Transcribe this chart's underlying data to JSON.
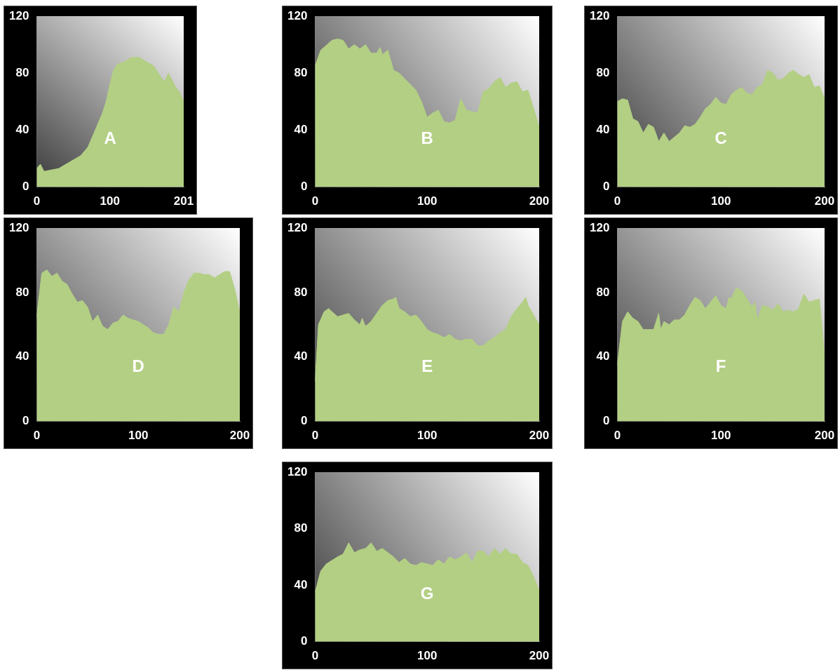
{
  "chart_data": [
    {
      "type": "area",
      "x": [
        0,
        5,
        10,
        20,
        30,
        40,
        50,
        60,
        70,
        80,
        90,
        95,
        100,
        105,
        110,
        120,
        130,
        140,
        150,
        160,
        170,
        175,
        180,
        190,
        195,
        201
      ],
      "values": [
        13,
        16,
        11,
        12,
        13,
        16,
        19,
        22,
        28,
        40,
        52,
        60,
        72,
        82,
        86,
        88,
        91,
        91,
        88,
        85,
        77,
        74,
        80,
        70,
        67,
        60
      ],
      "color": "#b3cf84",
      "xlim": [
        0,
        201
      ],
      "xticks": [
        0,
        100,
        201
      ],
      "ylim": [
        0,
        120
      ],
      "yticks": [
        0,
        40,
        80,
        120
      ],
      "annotations": [
        "A"
      ]
    },
    {
      "type": "area",
      "x": [
        0,
        5,
        15,
        20,
        25,
        30,
        35,
        40,
        45,
        50,
        55,
        58,
        60,
        65,
        70,
        75,
        80,
        90,
        95,
        100,
        105,
        110,
        115,
        120,
        125,
        130,
        135,
        140,
        145,
        150,
        155,
        160,
        165,
        170,
        175,
        180,
        185,
        190,
        195,
        200
      ],
      "values": [
        85,
        96,
        103,
        104,
        103,
        97,
        100,
        97,
        100,
        94,
        94,
        98,
        93,
        96,
        82,
        80,
        76,
        68,
        60,
        49,
        52,
        54,
        46,
        45,
        47,
        62,
        54,
        53,
        52,
        67,
        69,
        74,
        77,
        70,
        73,
        74,
        67,
        68,
        55,
        42
      ],
      "color": "#b3cf84",
      "xlim": [
        0,
        200
      ],
      "xticks": [
        0,
        100,
        200
      ],
      "ylim": [
        0,
        120
      ],
      "yticks": [
        0,
        40,
        80,
        120
      ],
      "annotations": [
        "B"
      ]
    },
    {
      "type": "area",
      "x": [
        0,
        5,
        10,
        15,
        20,
        25,
        30,
        35,
        40,
        45,
        50,
        55,
        60,
        65,
        70,
        75,
        80,
        85,
        90,
        95,
        100,
        105,
        110,
        115,
        120,
        125,
        130,
        135,
        140,
        145,
        150,
        155,
        160,
        165,
        170,
        175,
        180,
        185,
        190,
        195,
        200
      ],
      "values": [
        60,
        62,
        61,
        48,
        46,
        38,
        44,
        42,
        32,
        38,
        32,
        35,
        38,
        43,
        42,
        44,
        49,
        55,
        58,
        63,
        59,
        58,
        65,
        68,
        70,
        66,
        65,
        70,
        72,
        82,
        80,
        75,
        76,
        80,
        82,
        79,
        77,
        79,
        70,
        71,
        62
      ],
      "color": "#b3cf84",
      "xlim": [
        0,
        200
      ],
      "xticks": [
        0,
        100,
        200
      ],
      "ylim": [
        0,
        120
      ],
      "yticks": [
        0,
        40,
        80,
        120
      ],
      "annotations": [
        "C"
      ]
    },
    {
      "type": "area",
      "x": [
        0,
        5,
        10,
        15,
        20,
        25,
        30,
        35,
        40,
        45,
        50,
        55,
        60,
        65,
        70,
        75,
        80,
        85,
        90,
        95,
        100,
        105,
        110,
        115,
        120,
        125,
        130,
        135,
        140,
        145,
        150,
        155,
        160,
        165,
        170,
        175,
        180,
        185,
        190,
        195,
        200
      ],
      "values": [
        65,
        92,
        94,
        90,
        92,
        87,
        85,
        79,
        74,
        75,
        71,
        62,
        66,
        59,
        57,
        61,
        62,
        66,
        64,
        63,
        62,
        60,
        58,
        55,
        54,
        54,
        60,
        71,
        68,
        80,
        88,
        92,
        92,
        91,
        91,
        89,
        91,
        93,
        93,
        82,
        68
      ],
      "color": "#b3cf84",
      "xlim": [
        0,
        200
      ],
      "xticks": [
        0,
        100,
        200
      ],
      "ylim": [
        0,
        120
      ],
      "yticks": [
        0,
        40,
        80,
        120
      ],
      "annotations": [
        "D"
      ]
    },
    {
      "type": "area",
      "x": [
        0,
        3,
        8,
        12,
        20,
        30,
        35,
        40,
        42,
        45,
        50,
        55,
        60,
        65,
        70,
        72,
        75,
        80,
        85,
        90,
        95,
        100,
        105,
        110,
        115,
        120,
        125,
        130,
        135,
        140,
        145,
        150,
        155,
        160,
        165,
        170,
        175,
        180,
        185,
        188,
        190,
        195,
        200
      ],
      "values": [
        25,
        60,
        68,
        70,
        65,
        67,
        63,
        60,
        64,
        59,
        62,
        67,
        72,
        75,
        76,
        77,
        70,
        68,
        65,
        66,
        62,
        57,
        55,
        54,
        52,
        54,
        51,
        50,
        51,
        51,
        47,
        47,
        50,
        52,
        55,
        57,
        65,
        70,
        74,
        77,
        72,
        66,
        60
      ],
      "color": "#b3cf84",
      "xlim": [
        0,
        200
      ],
      "xticks": [
        0,
        100,
        200
      ],
      "ylim": [
        0,
        120
      ],
      "yticks": [
        0,
        40,
        80,
        120
      ],
      "annotations": [
        "E"
      ]
    },
    {
      "type": "area",
      "x": [
        0,
        5,
        10,
        15,
        20,
        25,
        30,
        35,
        40,
        42,
        45,
        50,
        55,
        60,
        65,
        70,
        75,
        80,
        85,
        90,
        95,
        100,
        105,
        108,
        110,
        115,
        120,
        125,
        130,
        133,
        135,
        140,
        145,
        150,
        155,
        160,
        165,
        170,
        175,
        180,
        185,
        190,
        195,
        200
      ],
      "values": [
        35,
        62,
        68,
        64,
        62,
        57,
        57,
        57,
        67,
        57,
        62,
        60,
        63,
        63,
        66,
        72,
        77,
        75,
        70,
        74,
        78,
        72,
        70,
        77,
        76,
        83,
        81,
        76,
        71,
        74,
        63,
        72,
        71,
        69,
        73,
        68,
        69,
        68,
        70,
        79,
        74,
        75,
        76,
        40
      ],
      "color": "#b3cf84",
      "xlim": [
        0,
        200
      ],
      "xticks": [
        0,
        100,
        200
      ],
      "ylim": [
        0,
        120
      ],
      "yticks": [
        0,
        40,
        80,
        120
      ],
      "annotations": [
        "F"
      ]
    },
    {
      "type": "area",
      "x": [
        0,
        5,
        10,
        20,
        25,
        30,
        35,
        40,
        45,
        50,
        55,
        60,
        65,
        70,
        75,
        80,
        85,
        90,
        95,
        100,
        105,
        110,
        115,
        120,
        125,
        130,
        135,
        140,
        145,
        150,
        155,
        160,
        165,
        170,
        175,
        180,
        185,
        190,
        195,
        200
      ],
      "values": [
        35,
        50,
        55,
        60,
        62,
        70,
        63,
        65,
        66,
        70,
        64,
        66,
        63,
        60,
        56,
        59,
        55,
        54,
        56,
        55,
        54,
        58,
        55,
        60,
        58,
        60,
        63,
        56,
        64,
        64,
        60,
        66,
        62,
        66,
        62,
        62,
        56,
        54,
        46,
        36
      ],
      "color": "#b3cf84",
      "xlim": [
        0,
        200
      ],
      "xticks": [
        0,
        100,
        200
      ],
      "ylim": [
        0,
        120
      ],
      "yticks": [
        0,
        40,
        80,
        120
      ],
      "annotations": [
        "G"
      ]
    }
  ]
}
